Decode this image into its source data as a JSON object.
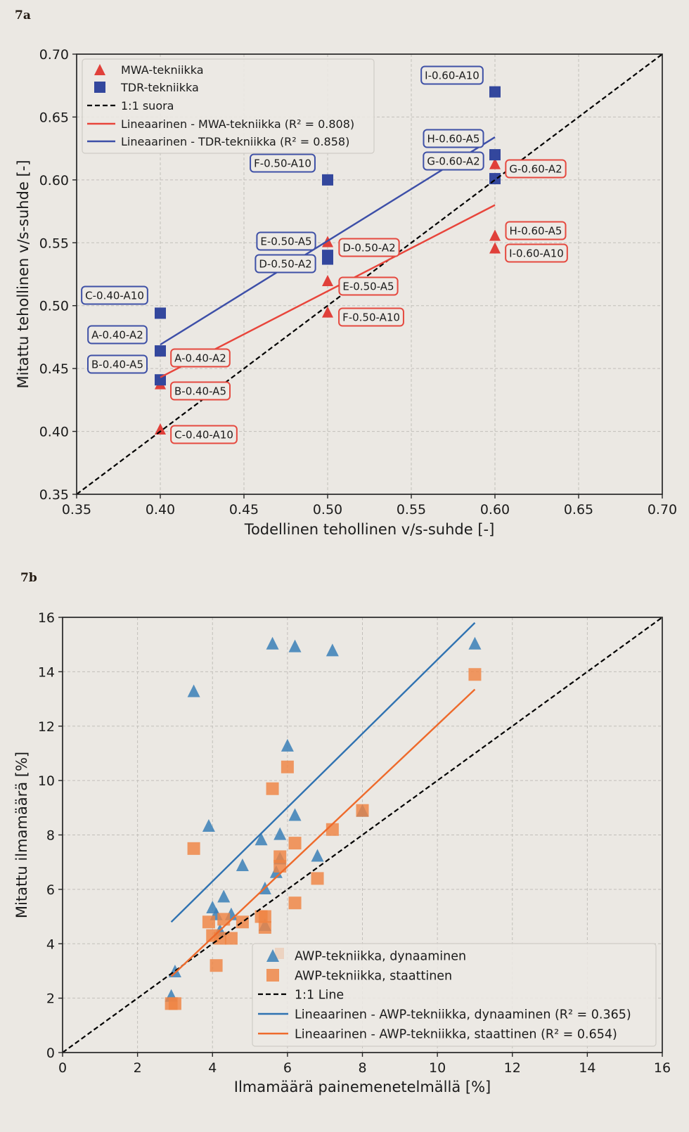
{
  "chart_data": [
    {
      "panel_label": "7a",
      "type": "scatter",
      "title": "",
      "xlabel": "Todellinen tehollinen v/s-suhde [-]",
      "ylabel": "Mitattu tehollinen v/s-suhde [-]",
      "xlim": [
        0.35,
        0.7
      ],
      "ylim": [
        0.35,
        0.7
      ],
      "xticks": [
        "0.35",
        "0.40",
        "0.45",
        "0.50",
        "0.55",
        "0.60",
        "0.65",
        "0.70"
      ],
      "yticks": [
        "0.35",
        "0.40",
        "0.45",
        "0.50",
        "0.55",
        "0.60",
        "0.65",
        "0.70"
      ],
      "grid": true,
      "legend_position": "top-left",
      "series": [
        {
          "name": "MWA-tekniikka",
          "marker": "triangle",
          "color": "#e0403a",
          "label_color": "#e5493f",
          "points": [
            {
              "label": "A-0.40-A2",
              "x": 0.4,
              "y": 0.464
            },
            {
              "label": "B-0.40-A5",
              "x": 0.4,
              "y": 0.438
            },
            {
              "label": "C-0.40-A10",
              "x": 0.4,
              "y": 0.402
            },
            {
              "label": "D-0.50-A2",
              "x": 0.5,
              "y": 0.551
            },
            {
              "label": "E-0.50-A5",
              "x": 0.5,
              "y": 0.52
            },
            {
              "label": "F-0.50-A10",
              "x": 0.5,
              "y": 0.495
            },
            {
              "label": "G-0.60-A2",
              "x": 0.6,
              "y": 0.613
            },
            {
              "label": "H-0.60-A5",
              "x": 0.6,
              "y": 0.556
            },
            {
              "label": "I-0.60-A10",
              "x": 0.6,
              "y": 0.546
            }
          ]
        },
        {
          "name": "TDR-tekniikka",
          "marker": "square",
          "color": "#33479d",
          "label_color": "#3e50a6",
          "points": [
            {
              "label": "A-0.40-A2",
              "x": 0.4,
              "y": 0.464
            },
            {
              "label": "B-0.40-A5",
              "x": 0.4,
              "y": 0.441
            },
            {
              "label": "C-0.40-A10",
              "x": 0.4,
              "y": 0.494
            },
            {
              "label": "D-0.50-A2",
              "x": 0.5,
              "y": 0.537
            },
            {
              "label": "E-0.50-A5",
              "x": 0.5,
              "y": 0.54
            },
            {
              "label": "F-0.50-A10",
              "x": 0.5,
              "y": 0.6
            },
            {
              "label": "G-0.60-A2",
              "x": 0.6,
              "y": 0.601
            },
            {
              "label": "H-0.60-A5",
              "x": 0.6,
              "y": 0.62
            },
            {
              "label": "I-0.60-A10",
              "x": 0.6,
              "y": 0.67
            }
          ]
        }
      ],
      "lines": [
        {
          "name": "1:1 suora",
          "kind": "reference",
          "style": "dashed",
          "color": "#000000",
          "x": [
            0.35,
            0.7
          ],
          "y": [
            0.35,
            0.7
          ]
        },
        {
          "name": "Lineaarinen - MWA-tekniikka",
          "kind": "fit",
          "r2": 0.808,
          "style": "solid",
          "color": "#e8453b",
          "x": [
            0.4,
            0.6
          ],
          "y": [
            0.443,
            0.58
          ]
        },
        {
          "name": "Lineaarinen - TDR-tekniikka",
          "kind": "fit",
          "r2": 0.858,
          "style": "solid",
          "color": "#3d4fa8",
          "x": [
            0.4,
            0.6
          ],
          "y": [
            0.469,
            0.634
          ]
        }
      ],
      "legend": [
        {
          "label": "MWA-tekniikka",
          "symbol": "triangle",
          "color": "#e0403a"
        },
        {
          "label": "TDR-tekniikka",
          "symbol": "square",
          "color": "#33479d"
        },
        {
          "label": "1:1 suora",
          "symbol": "dashed-line",
          "color": "#000000"
        },
        {
          "label": "Lineaarinen - MWA-tekniikka (R² = 0.808)",
          "symbol": "line",
          "color": "#e8453b"
        },
        {
          "label": "Lineaarinen - TDR-tekniikka (R² = 0.858)",
          "symbol": "line",
          "color": "#3d4fa8"
        }
      ]
    },
    {
      "panel_label": "7b",
      "type": "scatter",
      "title": "",
      "xlabel": "Ilmamäärä painemenetelmällä [%]",
      "ylabel": "Mitattu ilmamäärä [%]",
      "xlim": [
        0,
        16
      ],
      "ylim": [
        0,
        16
      ],
      "xticks": [
        "0",
        "2",
        "4",
        "6",
        "8",
        "10",
        "12",
        "14",
        "16"
      ],
      "yticks": [
        "0",
        "2",
        "4",
        "6",
        "8",
        "10",
        "12",
        "14",
        "16"
      ],
      "grid": true,
      "legend_position": "bottom-right",
      "series": [
        {
          "name": "AWP-tekniikka, dynaaminen",
          "marker": "triangle",
          "color": "#3a7fb7",
          "points": [
            {
              "x": 2.9,
              "y": 2.1
            },
            {
              "x": 3.0,
              "y": 3.0
            },
            {
              "x": 3.5,
              "y": 13.3
            },
            {
              "x": 3.9,
              "y": 8.35
            },
            {
              "x": 4.0,
              "y": 5.35
            },
            {
              "x": 4.1,
              "y": 5.1
            },
            {
              "x": 4.2,
              "y": 4.5
            },
            {
              "x": 4.3,
              "y": 5.75
            },
            {
              "x": 4.5,
              "y": 5.1
            },
            {
              "x": 4.8,
              "y": 6.9
            },
            {
              "x": 5.3,
              "y": 7.85
            },
            {
              "x": 5.4,
              "y": 6.05
            },
            {
              "x": 5.4,
              "y": 4.7
            },
            {
              "x": 5.6,
              "y": 15.05
            },
            {
              "x": 5.7,
              "y": 6.65
            },
            {
              "x": 5.8,
              "y": 8.05
            },
            {
              "x": 5.8,
              "y": 7.15
            },
            {
              "x": 6.0,
              "y": 11.3
            },
            {
              "x": 6.2,
              "y": 8.75
            },
            {
              "x": 6.2,
              "y": 14.95
            },
            {
              "x": 6.8,
              "y": 7.25
            },
            {
              "x": 7.2,
              "y": 14.8
            },
            {
              "x": 8.0,
              "y": 8.9
            },
            {
              "x": 11.0,
              "y": 15.05
            }
          ]
        },
        {
          "name": "AWP-tekniikka, staattinen",
          "marker": "square",
          "color": "#ef8443",
          "points": [
            {
              "x": 2.9,
              "y": 1.8
            },
            {
              "x": 3.0,
              "y": 1.8
            },
            {
              "x": 3.5,
              "y": 7.5
            },
            {
              "x": 3.9,
              "y": 4.8
            },
            {
              "x": 4.0,
              "y": 4.3
            },
            {
              "x": 4.1,
              "y": 3.2
            },
            {
              "x": 4.2,
              "y": 4.2
            },
            {
              "x": 4.3,
              "y": 4.9
            },
            {
              "x": 4.5,
              "y": 4.2
            },
            {
              "x": 4.8,
              "y": 4.8
            },
            {
              "x": 5.3,
              "y": 5.0
            },
            {
              "x": 5.4,
              "y": 4.6
            },
            {
              "x": 5.4,
              "y": 5.0
            },
            {
              "x": 5.6,
              "y": 9.7
            },
            {
              "x": 5.8,
              "y": 7.2
            },
            {
              "x": 5.8,
              "y": 6.85
            },
            {
              "x": 6.0,
              "y": 10.5
            },
            {
              "x": 6.2,
              "y": 7.7
            },
            {
              "x": 6.2,
              "y": 5.5
            },
            {
              "x": 6.8,
              "y": 6.4
            },
            {
              "x": 7.2,
              "y": 8.2
            },
            {
              "x": 8.0,
              "y": 8.9
            },
            {
              "x": 11.0,
              "y": 13.9
            }
          ]
        }
      ],
      "lines": [
        {
          "name": "1:1 Line",
          "kind": "reference",
          "style": "dashed",
          "color": "#000000",
          "x": [
            0,
            16
          ],
          "y": [
            0,
            16
          ]
        },
        {
          "name": "Lineaarinen - AWP-tekniikka, dynaaminen",
          "kind": "fit",
          "r2": 0.365,
          "style": "solid",
          "color": "#2f72b1",
          "x": [
            2.9,
            11.0
          ],
          "y": [
            4.8,
            15.8
          ]
        },
        {
          "name": "Lineaarinen - AWP-tekniikka, staattinen",
          "kind": "fit",
          "r2": 0.654,
          "style": "solid",
          "color": "#ee6a2b",
          "x": [
            2.9,
            11.0
          ],
          "y": [
            2.8,
            13.35
          ]
        }
      ],
      "legend": [
        {
          "label": "AWP-tekniikka, dynaaminen",
          "symbol": "triangle",
          "color": "#3a7fb7"
        },
        {
          "label": "AWP-tekniikka, staattinen",
          "symbol": "square",
          "color": "#ef8443"
        },
        {
          "label": "1:1 Line",
          "symbol": "dashed-line",
          "color": "#000000"
        },
        {
          "label": "Lineaarinen - AWP-tekniikka, dynaaminen (R² = 0.365)",
          "symbol": "line",
          "color": "#2f72b1"
        },
        {
          "label": "Lineaarinen - AWP-tekniikka, staattinen (R² = 0.654)",
          "symbol": "line",
          "color": "#ee6a2b"
        }
      ]
    }
  ]
}
